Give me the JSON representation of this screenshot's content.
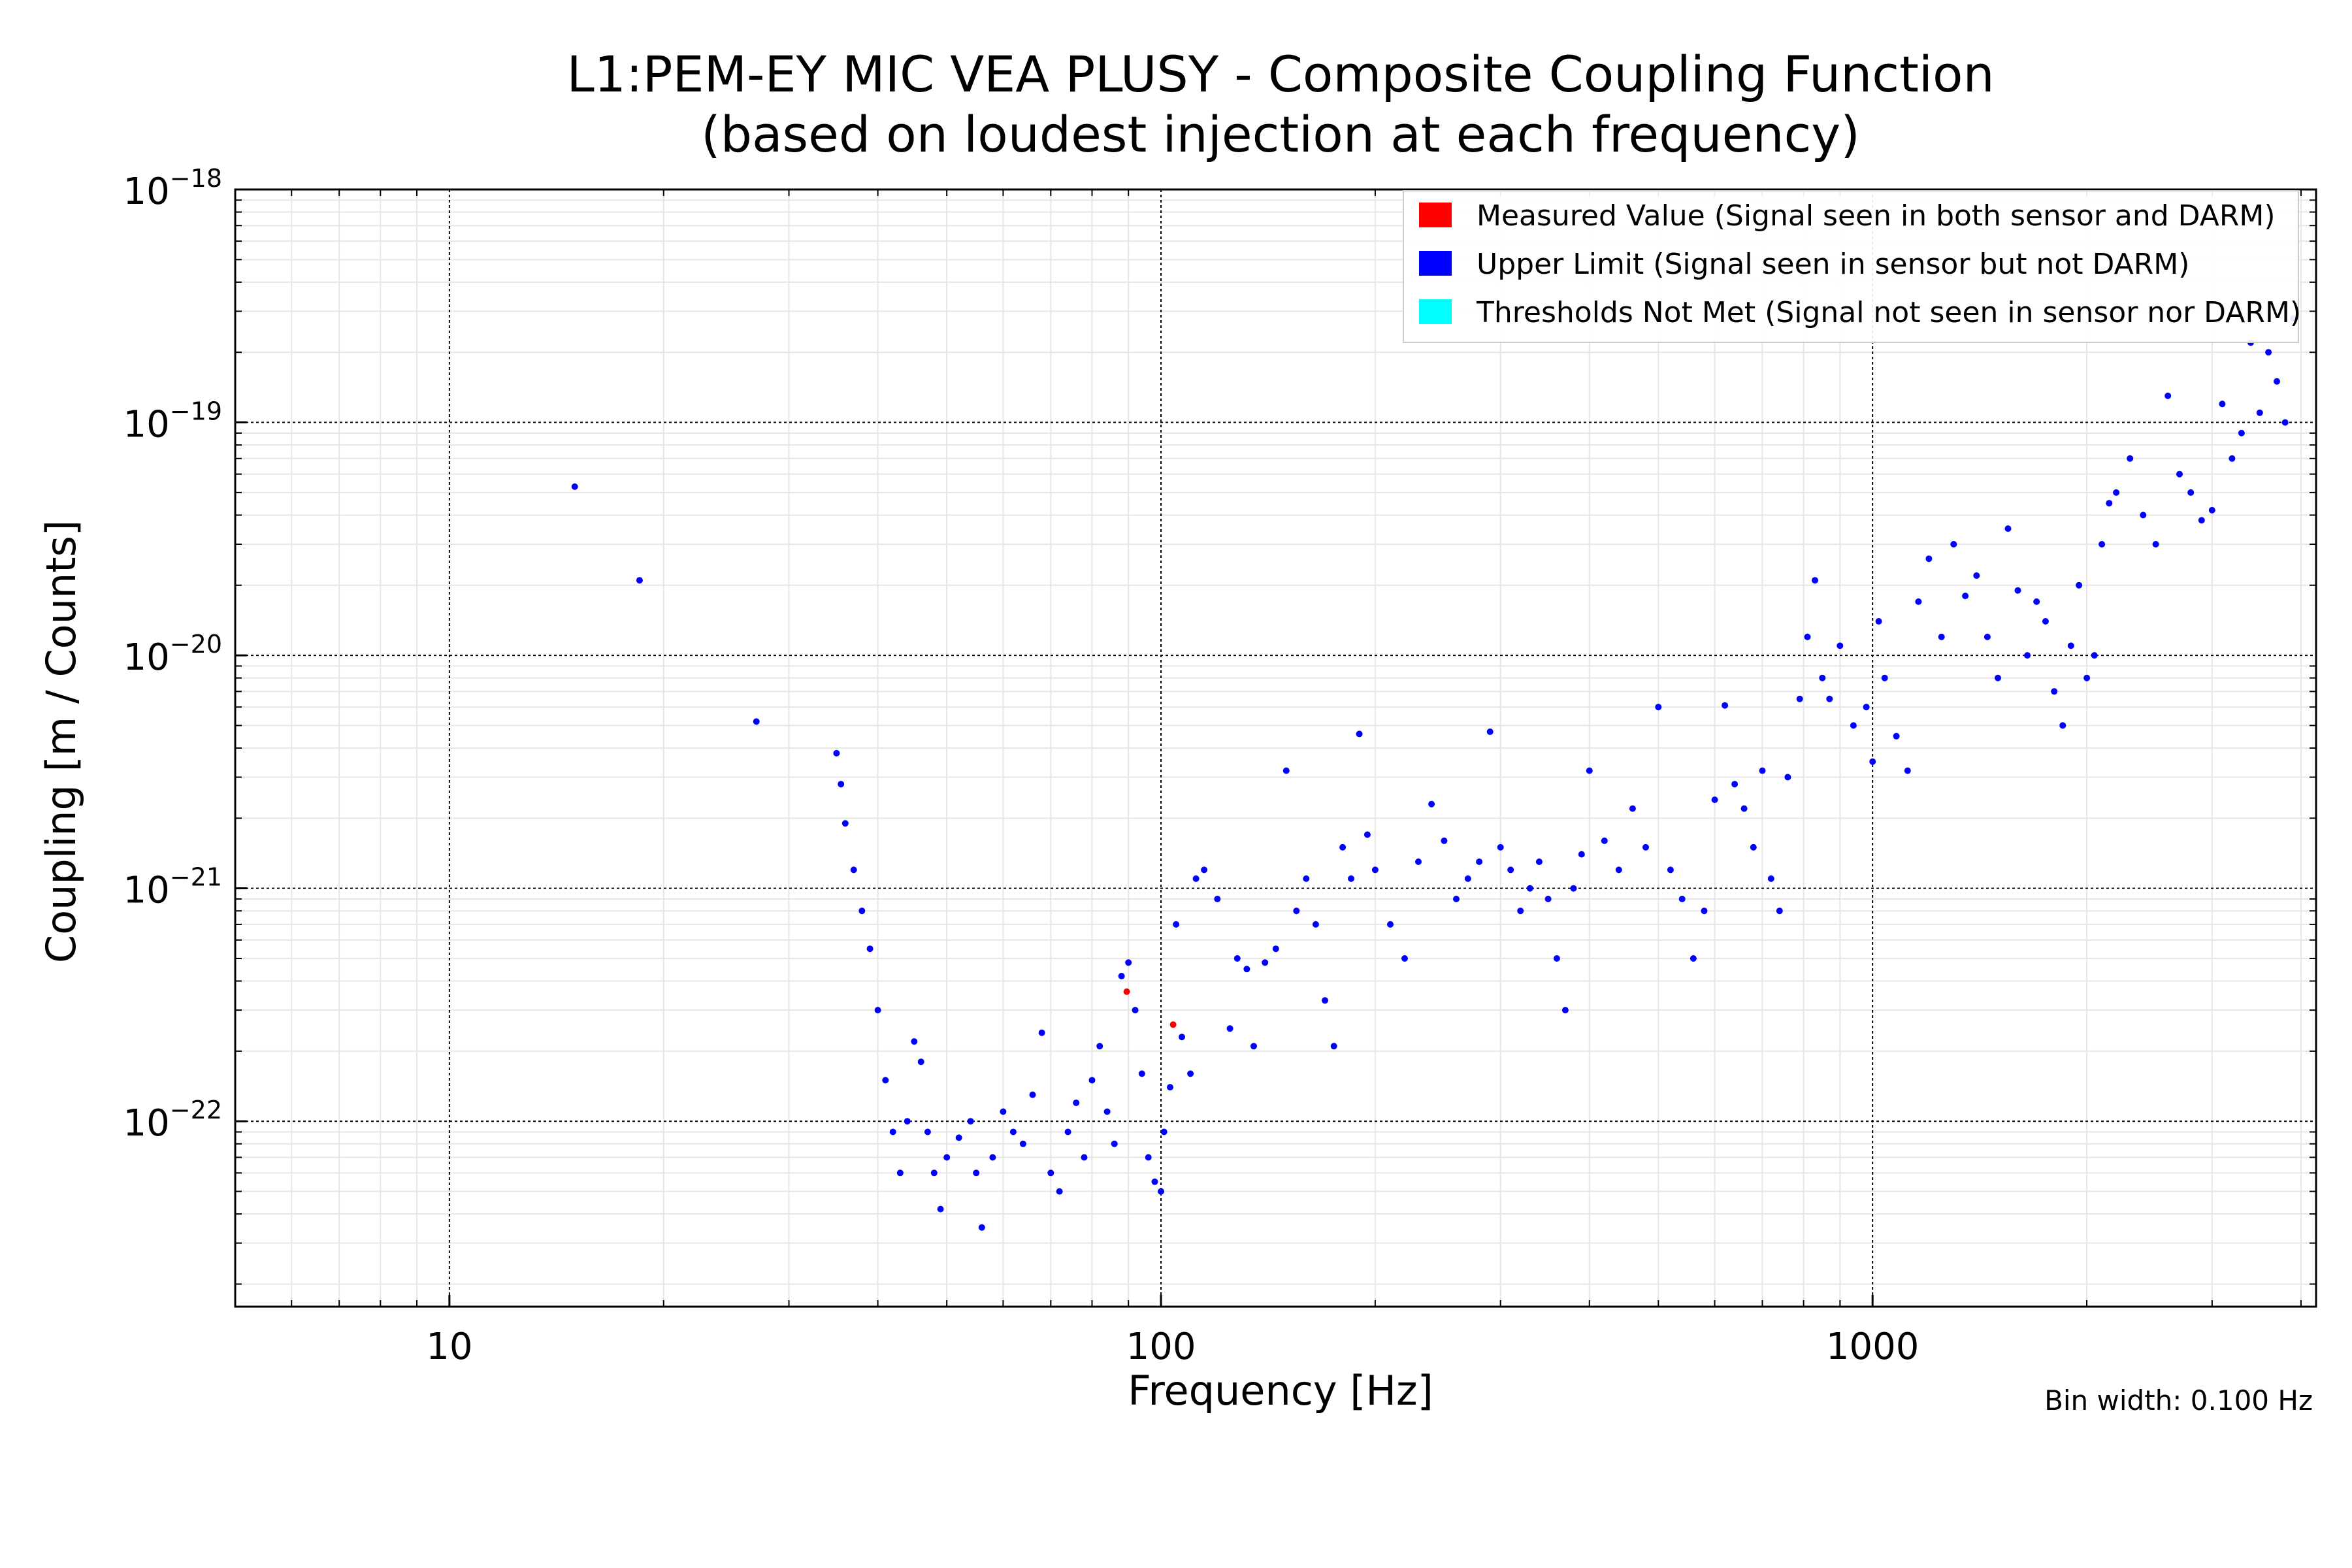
{
  "chart_data": {
    "type": "scatter",
    "title": "L1:PEM-EY MIC VEA PLUSY - Composite Coupling Function",
    "subtitle": "(based on loudest injection at each frequency)",
    "xlabel": "Frequency [Hz]",
    "ylabel": "Coupling [m / Counts]",
    "xscale": "log",
    "yscale": "log",
    "xlim": [
      5,
      4200
    ],
    "ylim": [
      1.6e-23,
      1e-18
    ],
    "x_ticks": [
      {
        "value": 10,
        "label": "10"
      },
      {
        "value": 100,
        "label": "100"
      },
      {
        "value": 1000,
        "label": "1000"
      }
    ],
    "y_ticks": [
      {
        "value": 1e-22,
        "base": "10",
        "exp": "−22"
      },
      {
        "value": 1e-21,
        "base": "10",
        "exp": "−21"
      },
      {
        "value": 1e-20,
        "base": "10",
        "exp": "−20"
      },
      {
        "value": 1e-19,
        "base": "10",
        "exp": "−19"
      },
      {
        "value": 1e-18,
        "base": "10",
        "exp": "−18"
      }
    ],
    "grid": true,
    "legend_position": "top-right",
    "note": "Bin width: 0.100 Hz",
    "series": [
      {
        "name": "Measured Value (Signal seen in both sensor and DARM)",
        "color": "#ff0000",
        "points": [
          [
            89.5,
            3.6e-22
          ],
          [
            104,
            2.6e-22
          ]
        ]
      },
      {
        "name": "Upper Limit (Signal seen in sensor but not DARM)",
        "color": "#0000ff",
        "points": [
          [
            15,
            5.3e-20
          ],
          [
            18.5,
            2.1e-20
          ],
          [
            27,
            5.2e-21
          ],
          [
            35,
            3.8e-21
          ],
          [
            35.5,
            2.8e-21
          ],
          [
            36,
            1.9e-21
          ],
          [
            37,
            1.2e-21
          ],
          [
            38,
            8e-22
          ],
          [
            39,
            5.5e-22
          ],
          [
            40,
            3e-22
          ],
          [
            41,
            1.5e-22
          ],
          [
            42,
            9e-23
          ],
          [
            43,
            6e-23
          ],
          [
            44,
            1e-22
          ],
          [
            45,
            2.2e-22
          ],
          [
            46,
            1.8e-22
          ],
          [
            47,
            9e-23
          ],
          [
            48,
            6e-23
          ],
          [
            49,
            4.2e-23
          ],
          [
            50,
            7e-23
          ],
          [
            52,
            8.5e-23
          ],
          [
            54,
            1e-22
          ],
          [
            55,
            6e-23
          ],
          [
            56,
            3.5e-23
          ],
          [
            58,
            7e-23
          ],
          [
            60,
            1.1e-22
          ],
          [
            62,
            9e-23
          ],
          [
            64,
            8e-23
          ],
          [
            66,
            1.3e-22
          ],
          [
            68,
            2.4e-22
          ],
          [
            70,
            6e-23
          ],
          [
            72,
            5e-23
          ],
          [
            74,
            9e-23
          ],
          [
            76,
            1.2e-22
          ],
          [
            78,
            7e-23
          ],
          [
            80,
            1.5e-22
          ],
          [
            82,
            2.1e-22
          ],
          [
            84,
            1.1e-22
          ],
          [
            86,
            8e-23
          ],
          [
            88,
            4.2e-22
          ],
          [
            90,
            4.8e-22
          ],
          [
            92,
            3e-22
          ],
          [
            94,
            1.6e-22
          ],
          [
            96,
            7e-23
          ],
          [
            98,
            5.5e-23
          ],
          [
            100,
            5e-23
          ],
          [
            101,
            9e-23
          ],
          [
            103,
            1.4e-22
          ],
          [
            105,
            7e-22
          ],
          [
            107,
            2.3e-22
          ],
          [
            110,
            1.6e-22
          ],
          [
            112,
            1.1e-21
          ],
          [
            115,
            1.2e-21
          ],
          [
            120,
            9e-22
          ],
          [
            125,
            2.5e-22
          ],
          [
            128,
            5e-22
          ],
          [
            132,
            4.5e-22
          ],
          [
            135,
            2.1e-22
          ],
          [
            140,
            4.8e-22
          ],
          [
            145,
            5.5e-22
          ],
          [
            150,
            3.2e-21
          ],
          [
            155,
            8e-22
          ],
          [
            160,
            1.1e-21
          ],
          [
            165,
            7e-22
          ],
          [
            170,
            3.3e-22
          ],
          [
            175,
            2.1e-22
          ],
          [
            180,
            1.5e-21
          ],
          [
            185,
            1.1e-21
          ],
          [
            190,
            4.6e-21
          ],
          [
            195,
            1.7e-21
          ],
          [
            200,
            1.2e-21
          ],
          [
            210,
            7e-22
          ],
          [
            220,
            5e-22
          ],
          [
            230,
            1.3e-21
          ],
          [
            240,
            2.3e-21
          ],
          [
            250,
            1.6e-21
          ],
          [
            260,
            9e-22
          ],
          [
            270,
            1.1e-21
          ],
          [
            280,
            1.3e-21
          ],
          [
            290,
            4.7e-21
          ],
          [
            300,
            1.5e-21
          ],
          [
            310,
            1.2e-21
          ],
          [
            320,
            8e-22
          ],
          [
            330,
            1e-21
          ],
          [
            340,
            1.3e-21
          ],
          [
            350,
            9e-22
          ],
          [
            360,
            5e-22
          ],
          [
            370,
            3e-22
          ],
          [
            380,
            1e-21
          ],
          [
            390,
            1.4e-21
          ],
          [
            400,
            3.2e-21
          ],
          [
            420,
            1.6e-21
          ],
          [
            440,
            1.2e-21
          ],
          [
            460,
            2.2e-21
          ],
          [
            480,
            1.5e-21
          ],
          [
            500,
            6e-21
          ],
          [
            520,
            1.2e-21
          ],
          [
            540,
            9e-22
          ],
          [
            560,
            5e-22
          ],
          [
            580,
            8e-22
          ],
          [
            600,
            2.4e-21
          ],
          [
            620,
            6.1e-21
          ],
          [
            640,
            2.8e-21
          ],
          [
            660,
            2.2e-21
          ],
          [
            680,
            1.5e-21
          ],
          [
            700,
            3.2e-21
          ],
          [
            720,
            1.1e-21
          ],
          [
            740,
            8e-22
          ],
          [
            760,
            3e-21
          ],
          [
            790,
            6.5e-21
          ],
          [
            810,
            1.2e-20
          ],
          [
            830,
            2.1e-20
          ],
          [
            850,
            8e-21
          ],
          [
            870,
            6.5e-21
          ],
          [
            900,
            1.1e-20
          ],
          [
            940,
            5e-21
          ],
          [
            980,
            6e-21
          ],
          [
            1000,
            3.5e-21
          ],
          [
            1020,
            1.4e-20
          ],
          [
            1040,
            8e-21
          ],
          [
            1080,
            4.5e-21
          ],
          [
            1120,
            3.2e-21
          ],
          [
            1160,
            1.7e-20
          ],
          [
            1200,
            2.6e-20
          ],
          [
            1250,
            1.2e-20
          ],
          [
            1300,
            3e-20
          ],
          [
            1350,
            1.8e-20
          ],
          [
            1400,
            2.2e-20
          ],
          [
            1450,
            1.2e-20
          ],
          [
            1500,
            8e-21
          ],
          [
            1550,
            3.5e-20
          ],
          [
            1600,
            1.9e-20
          ],
          [
            1650,
            1e-20
          ],
          [
            1700,
            1.7e-20
          ],
          [
            1750,
            1.4e-20
          ],
          [
            1800,
            7e-21
          ],
          [
            1850,
            5e-21
          ],
          [
            1900,
            1.1e-20
          ],
          [
            1950,
            2e-20
          ],
          [
            2000,
            8e-21
          ],
          [
            2050,
            1e-20
          ],
          [
            2100,
            3e-20
          ],
          [
            2150,
            4.5e-20
          ],
          [
            2200,
            5e-20
          ],
          [
            2300,
            7e-20
          ],
          [
            2400,
            4e-20
          ],
          [
            2500,
            3e-20
          ],
          [
            2600,
            1.3e-19
          ],
          [
            2700,
            6e-20
          ],
          [
            2800,
            5e-20
          ],
          [
            2900,
            3.8e-20
          ],
          [
            3000,
            4.2e-20
          ],
          [
            3100,
            1.2e-19
          ],
          [
            3200,
            7e-20
          ],
          [
            3300,
            9e-20
          ],
          [
            3400,
            2.2e-19
          ],
          [
            3500,
            1.1e-19
          ],
          [
            3600,
            2e-19
          ],
          [
            3700,
            1.5e-19
          ],
          [
            3800,
            1e-19
          ],
          [
            3900,
            2.8e-19
          ]
        ]
      },
      {
        "name": "Thresholds Not Met (Signal not seen in sensor nor DARM)",
        "color": "#00ffff",
        "points": []
      }
    ]
  }
}
